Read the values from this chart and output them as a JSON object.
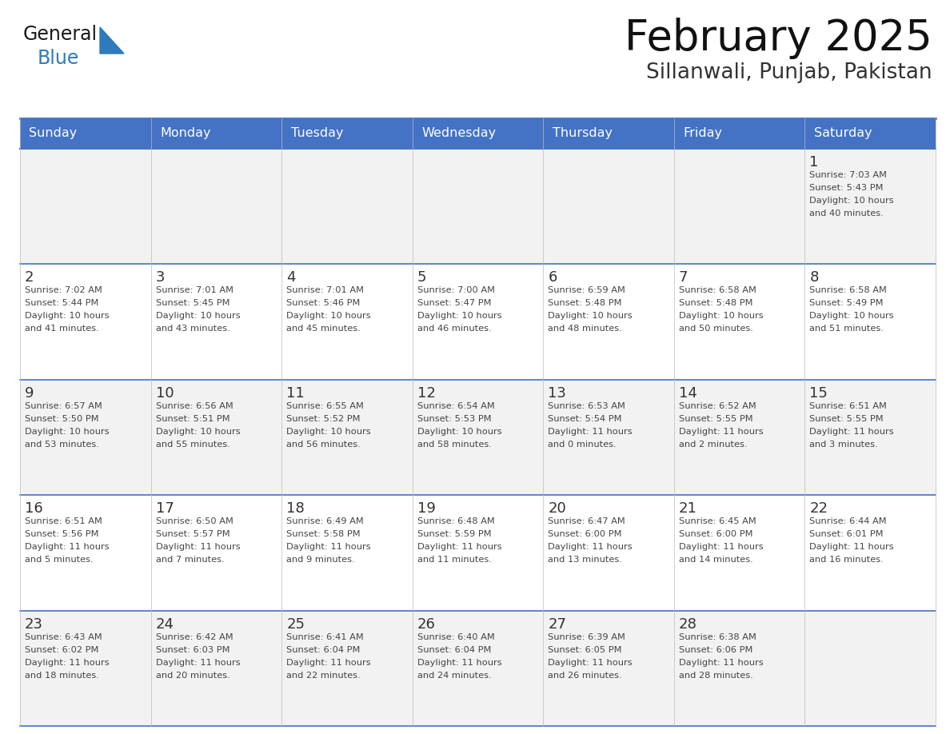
{
  "title": "February 2025",
  "subtitle": "Sillanwali, Punjab, Pakistan",
  "header_bg": "#4472C4",
  "header_text": "#FFFFFF",
  "row_bg_odd": "#F2F2F2",
  "row_bg_even": "#FFFFFF",
  "cell_border": "#4472C4",
  "day_text_color": "#333333",
  "info_text_color": "#444444",
  "days_of_week": [
    "Sunday",
    "Monday",
    "Tuesday",
    "Wednesday",
    "Thursday",
    "Friday",
    "Saturday"
  ],
  "weeks": [
    [
      {
        "day": "",
        "sunrise": "",
        "sunset": "",
        "daylight": ""
      },
      {
        "day": "",
        "sunrise": "",
        "sunset": "",
        "daylight": ""
      },
      {
        "day": "",
        "sunrise": "",
        "sunset": "",
        "daylight": ""
      },
      {
        "day": "",
        "sunrise": "",
        "sunset": "",
        "daylight": ""
      },
      {
        "day": "",
        "sunrise": "",
        "sunset": "",
        "daylight": ""
      },
      {
        "day": "",
        "sunrise": "",
        "sunset": "",
        "daylight": ""
      },
      {
        "day": "1",
        "sunrise": "7:03 AM",
        "sunset": "5:43 PM",
        "daylight": "10 hours\nand 40 minutes."
      }
    ],
    [
      {
        "day": "2",
        "sunrise": "7:02 AM",
        "sunset": "5:44 PM",
        "daylight": "10 hours\nand 41 minutes."
      },
      {
        "day": "3",
        "sunrise": "7:01 AM",
        "sunset": "5:45 PM",
        "daylight": "10 hours\nand 43 minutes."
      },
      {
        "day": "4",
        "sunrise": "7:01 AM",
        "sunset": "5:46 PM",
        "daylight": "10 hours\nand 45 minutes."
      },
      {
        "day": "5",
        "sunrise": "7:00 AM",
        "sunset": "5:47 PM",
        "daylight": "10 hours\nand 46 minutes."
      },
      {
        "day": "6",
        "sunrise": "6:59 AM",
        "sunset": "5:48 PM",
        "daylight": "10 hours\nand 48 minutes."
      },
      {
        "day": "7",
        "sunrise": "6:58 AM",
        "sunset": "5:48 PM",
        "daylight": "10 hours\nand 50 minutes."
      },
      {
        "day": "8",
        "sunrise": "6:58 AM",
        "sunset": "5:49 PM",
        "daylight": "10 hours\nand 51 minutes."
      }
    ],
    [
      {
        "day": "9",
        "sunrise": "6:57 AM",
        "sunset": "5:50 PM",
        "daylight": "10 hours\nand 53 minutes."
      },
      {
        "day": "10",
        "sunrise": "6:56 AM",
        "sunset": "5:51 PM",
        "daylight": "10 hours\nand 55 minutes."
      },
      {
        "day": "11",
        "sunrise": "6:55 AM",
        "sunset": "5:52 PM",
        "daylight": "10 hours\nand 56 minutes."
      },
      {
        "day": "12",
        "sunrise": "6:54 AM",
        "sunset": "5:53 PM",
        "daylight": "10 hours\nand 58 minutes."
      },
      {
        "day": "13",
        "sunrise": "6:53 AM",
        "sunset": "5:54 PM",
        "daylight": "11 hours\nand 0 minutes."
      },
      {
        "day": "14",
        "sunrise": "6:52 AM",
        "sunset": "5:55 PM",
        "daylight": "11 hours\nand 2 minutes."
      },
      {
        "day": "15",
        "sunrise": "6:51 AM",
        "sunset": "5:55 PM",
        "daylight": "11 hours\nand 3 minutes."
      }
    ],
    [
      {
        "day": "16",
        "sunrise": "6:51 AM",
        "sunset": "5:56 PM",
        "daylight": "11 hours\nand 5 minutes."
      },
      {
        "day": "17",
        "sunrise": "6:50 AM",
        "sunset": "5:57 PM",
        "daylight": "11 hours\nand 7 minutes."
      },
      {
        "day": "18",
        "sunrise": "6:49 AM",
        "sunset": "5:58 PM",
        "daylight": "11 hours\nand 9 minutes."
      },
      {
        "day": "19",
        "sunrise": "6:48 AM",
        "sunset": "5:59 PM",
        "daylight": "11 hours\nand 11 minutes."
      },
      {
        "day": "20",
        "sunrise": "6:47 AM",
        "sunset": "6:00 PM",
        "daylight": "11 hours\nand 13 minutes."
      },
      {
        "day": "21",
        "sunrise": "6:45 AM",
        "sunset": "6:00 PM",
        "daylight": "11 hours\nand 14 minutes."
      },
      {
        "day": "22",
        "sunrise": "6:44 AM",
        "sunset": "6:01 PM",
        "daylight": "11 hours\nand 16 minutes."
      }
    ],
    [
      {
        "day": "23",
        "sunrise": "6:43 AM",
        "sunset": "6:02 PM",
        "daylight": "11 hours\nand 18 minutes."
      },
      {
        "day": "24",
        "sunrise": "6:42 AM",
        "sunset": "6:03 PM",
        "daylight": "11 hours\nand 20 minutes."
      },
      {
        "day": "25",
        "sunrise": "6:41 AM",
        "sunset": "6:04 PM",
        "daylight": "11 hours\nand 22 minutes."
      },
      {
        "day": "26",
        "sunrise": "6:40 AM",
        "sunset": "6:04 PM",
        "daylight": "11 hours\nand 24 minutes."
      },
      {
        "day": "27",
        "sunrise": "6:39 AM",
        "sunset": "6:05 PM",
        "daylight": "11 hours\nand 26 minutes."
      },
      {
        "day": "28",
        "sunrise": "6:38 AM",
        "sunset": "6:06 PM",
        "daylight": "11 hours\nand 28 minutes."
      },
      {
        "day": "",
        "sunrise": "",
        "sunset": "",
        "daylight": ""
      }
    ]
  ],
  "logo_general_color": "#1a1a1a",
  "logo_blue_color": "#2e7abf",
  "fig_width": 11.88,
  "fig_height": 9.18,
  "dpi": 100
}
